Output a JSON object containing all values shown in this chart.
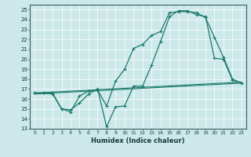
{
  "xlabel": "Humidex (Indice chaleur)",
  "bg_color": "#cce8e8",
  "grid_color": "#ffffff",
  "line_color": "#1a7a6a",
  "xlim": [
    -0.5,
    23.5
  ],
  "ylim": [
    13,
    25.5
  ],
  "xticks": [
    0,
    1,
    2,
    3,
    4,
    5,
    6,
    7,
    8,
    9,
    10,
    11,
    12,
    13,
    14,
    15,
    16,
    17,
    18,
    19,
    20,
    21,
    22,
    23
  ],
  "yticks": [
    13,
    14,
    15,
    16,
    17,
    18,
    19,
    20,
    21,
    22,
    23,
    24,
    25
  ],
  "line1_x": [
    0,
    1,
    2,
    3,
    4,
    5,
    6,
    7,
    8,
    9,
    10,
    11,
    12,
    13,
    14,
    15,
    16,
    17,
    18,
    19,
    20,
    21,
    22,
    23
  ],
  "line1_y": [
    16.6,
    16.6,
    16.6,
    15.0,
    14.7,
    16.3,
    16.8,
    16.9,
    15.3,
    17.8,
    19.0,
    21.1,
    21.5,
    22.4,
    22.8,
    24.7,
    24.8,
    24.8,
    24.7,
    24.2,
    22.2,
    20.2,
    18.0,
    17.6
  ],
  "line2_x": [
    0,
    1,
    2,
    3,
    4,
    5,
    6,
    7,
    8,
    9,
    10,
    11,
    12,
    13,
    14,
    15,
    16,
    17,
    18,
    19,
    20,
    21,
    22,
    23
  ],
  "line2_y": [
    16.6,
    16.6,
    16.5,
    15.0,
    14.9,
    15.6,
    16.5,
    17.0,
    13.2,
    15.2,
    15.3,
    17.3,
    17.3,
    19.4,
    21.8,
    24.3,
    24.9,
    24.9,
    24.5,
    24.3,
    20.1,
    20.0,
    17.9,
    17.6
  ],
  "line3_y_start": 16.6,
  "line3_y_end": 17.7,
  "line4_y_start": 16.5,
  "line4_y_end": 17.6
}
